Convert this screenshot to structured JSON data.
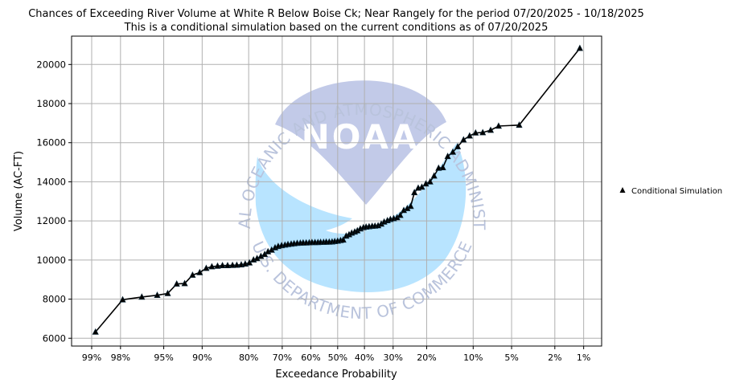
{
  "chart_data": {
    "type": "line",
    "title": "Chances of Exceeding River Volume at White R Below Boise Ck; Near Rangely for the period 07/20/2025 - 10/18/2025",
    "subtitle": "This is a conditional simulation based on the current conditions as of 07/20/2025",
    "xlabel": "Exceedance Probability",
    "ylabel": "Volume (AC-FT)",
    "x_scale": "normal-probability",
    "x_ticks": [
      {
        "p": 99,
        "label": "99%"
      },
      {
        "p": 98,
        "label": "98%"
      },
      {
        "p": 95,
        "label": "95%"
      },
      {
        "p": 90,
        "label": "90%"
      },
      {
        "p": 80,
        "label": "80%"
      },
      {
        "p": 70,
        "label": "70%"
      },
      {
        "p": 60,
        "label": "60%"
      },
      {
        "p": 50,
        "label": "50%"
      },
      {
        "p": 40,
        "label": "40%"
      },
      {
        "p": 30,
        "label": "30%"
      },
      {
        "p": 20,
        "label": "20%"
      },
      {
        "p": 10,
        "label": "10%"
      },
      {
        "p": 5,
        "label": "5%"
      },
      {
        "p": 2,
        "label": "2%"
      },
      {
        "p": 1,
        "label": "1%"
      }
    ],
    "y_ticks": [
      6000,
      8000,
      10000,
      12000,
      14000,
      16000,
      18000,
      20000
    ],
    "ylim": [
      5600,
      21450
    ],
    "grid": true,
    "legend_position": "right",
    "series": [
      {
        "name": "Conditional Simulation",
        "color": "#000000",
        "marker": "triangle",
        "points": [
          {
            "p": 98.9,
            "v": 6320
          },
          {
            "p": 97.9,
            "v": 7970
          },
          {
            "p": 96.8,
            "v": 8110
          },
          {
            "p": 95.6,
            "v": 8200
          },
          {
            "p": 94.6,
            "v": 8290
          },
          {
            "p": 93.6,
            "v": 8780
          },
          {
            "p": 92.6,
            "v": 8800
          },
          {
            "p": 91.5,
            "v": 9230
          },
          {
            "p": 90.4,
            "v": 9360
          },
          {
            "p": 89.3,
            "v": 9580
          },
          {
            "p": 88.3,
            "v": 9660
          },
          {
            "p": 87.2,
            "v": 9690
          },
          {
            "p": 86.2,
            "v": 9720
          },
          {
            "p": 85.1,
            "v": 9720
          },
          {
            "p": 84.0,
            "v": 9730
          },
          {
            "p": 83.0,
            "v": 9740
          },
          {
            "p": 81.9,
            "v": 9760
          },
          {
            "p": 80.9,
            "v": 9800
          },
          {
            "p": 79.8,
            "v": 9860
          },
          {
            "p": 78.7,
            "v": 10010
          },
          {
            "p": 77.7,
            "v": 10080
          },
          {
            "p": 76.6,
            "v": 10190
          },
          {
            "p": 75.5,
            "v": 10290
          },
          {
            "p": 74.5,
            "v": 10430
          },
          {
            "p": 73.4,
            "v": 10510
          },
          {
            "p": 72.3,
            "v": 10630
          },
          {
            "p": 71.3,
            "v": 10700
          },
          {
            "p": 70.2,
            "v": 10740
          },
          {
            "p": 69.1,
            "v": 10770
          },
          {
            "p": 68.1,
            "v": 10800
          },
          {
            "p": 67.0,
            "v": 10820
          },
          {
            "p": 66.0,
            "v": 10840
          },
          {
            "p": 64.9,
            "v": 10860
          },
          {
            "p": 63.8,
            "v": 10870
          },
          {
            "p": 62.8,
            "v": 10880
          },
          {
            "p": 61.7,
            "v": 10880
          },
          {
            "p": 60.6,
            "v": 10890
          },
          {
            "p": 59.6,
            "v": 10900
          },
          {
            "p": 58.5,
            "v": 10900
          },
          {
            "p": 57.4,
            "v": 10900
          },
          {
            "p": 56.4,
            "v": 10910
          },
          {
            "p": 55.3,
            "v": 10910
          },
          {
            "p": 54.3,
            "v": 10920
          },
          {
            "p": 53.2,
            "v": 10920
          },
          {
            "p": 52.1,
            "v": 10930
          },
          {
            "p": 51.1,
            "v": 10950
          },
          {
            "p": 50.0,
            "v": 10970
          },
          {
            "p": 48.9,
            "v": 11000
          },
          {
            "p": 47.9,
            "v": 11030
          },
          {
            "p": 46.8,
            "v": 11230
          },
          {
            "p": 45.7,
            "v": 11300
          },
          {
            "p": 44.7,
            "v": 11380
          },
          {
            "p": 43.6,
            "v": 11440
          },
          {
            "p": 42.6,
            "v": 11500
          },
          {
            "p": 41.5,
            "v": 11600
          },
          {
            "p": 40.4,
            "v": 11660
          },
          {
            "p": 39.4,
            "v": 11690
          },
          {
            "p": 38.3,
            "v": 11710
          },
          {
            "p": 37.2,
            "v": 11730
          },
          {
            "p": 36.2,
            "v": 11740
          },
          {
            "p": 35.1,
            "v": 11760
          },
          {
            "p": 34.0,
            "v": 11840
          },
          {
            "p": 33.0,
            "v": 11950
          },
          {
            "p": 31.9,
            "v": 12020
          },
          {
            "p": 30.9,
            "v": 12080
          },
          {
            "p": 29.8,
            "v": 12120
          },
          {
            "p": 28.7,
            "v": 12170
          },
          {
            "p": 27.7,
            "v": 12290
          },
          {
            "p": 26.6,
            "v": 12540
          },
          {
            "p": 25.5,
            "v": 12640
          },
          {
            "p": 24.5,
            "v": 12750
          },
          {
            "p": 23.4,
            "v": 13450
          },
          {
            "p": 22.3,
            "v": 13680
          },
          {
            "p": 21.3,
            "v": 13730
          },
          {
            "p": 20.2,
            "v": 13900
          },
          {
            "p": 19.1,
            "v": 14000
          },
          {
            "p": 18.1,
            "v": 14300
          },
          {
            "p": 17.0,
            "v": 14700
          },
          {
            "p": 16.0,
            "v": 14730
          },
          {
            "p": 14.9,
            "v": 15300
          },
          {
            "p": 13.8,
            "v": 15520
          },
          {
            "p": 12.8,
            "v": 15800
          },
          {
            "p": 11.7,
            "v": 16150
          },
          {
            "p": 10.6,
            "v": 16350
          },
          {
            "p": 9.6,
            "v": 16500
          },
          {
            "p": 8.5,
            "v": 16520
          },
          {
            "p": 7.4,
            "v": 16640
          },
          {
            "p": 6.4,
            "v": 16850
          },
          {
            "p": 4.3,
            "v": 16900
          },
          {
            "p": 1.1,
            "v": 20830
          }
        ]
      }
    ]
  },
  "watermark": {
    "logo_text": "NOAA",
    "ring_top": "NATIONAL OCEANIC AND ATMOSPHERIC ADMINISTRATION",
    "ring_bottom": "U.S. DEPARTMENT OF COMMERCE",
    "colors": {
      "upper": "#c2cae8",
      "lower": "#b8e4ff",
      "text": "#b9c3dc"
    }
  }
}
